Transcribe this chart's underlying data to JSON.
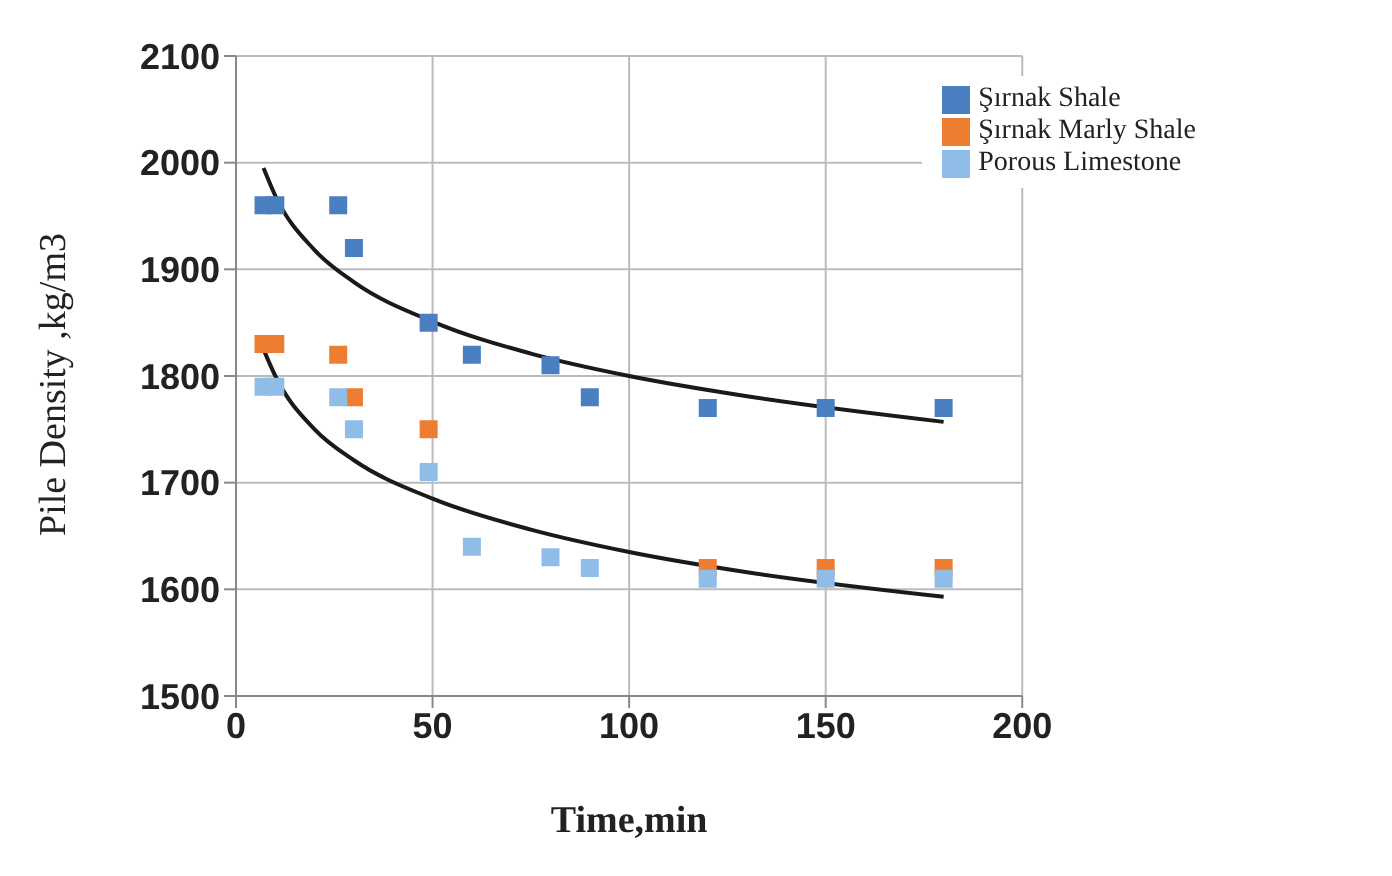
{
  "chart_data": {
    "type": "scatter",
    "xlabel": "Time,min",
    "ylabel": "Pile Density ,kg/m3",
    "x": [
      7,
      10,
      26,
      30,
      49,
      60,
      80,
      90,
      120,
      150,
      180
    ],
    "series": [
      {
        "name": "Şırnak Shale",
        "color": "#4a7fc1",
        "values": [
          1960,
          1960,
          1960,
          1920,
          1850,
          1820,
          1810,
          1780,
          1770,
          1770,
          1770
        ],
        "marker": "square"
      },
      {
        "name": "Şırnak Marly Shale",
        "color": "#ed7d31",
        "values": [
          1830,
          1830,
          1820,
          1780,
          1750,
          null,
          null,
          null,
          1620,
          1620,
          1620
        ],
        "marker": "square"
      },
      {
        "name": "Porous Limestone",
        "color": "#8fbde8",
        "values": [
          1790,
          1790,
          1780,
          1750,
          1710,
          1640,
          1630,
          1620,
          1610,
          1610,
          1610
        ],
        "marker": "square"
      },
      {
        "type": "line",
        "color": "#1a1a1a",
        "x": [
          7,
          10,
          20,
          30,
          50,
          75,
          100,
          130,
          180
        ],
        "values": [
          1995,
          1969,
          1918,
          1888,
          1851,
          1821,
          1800,
          1781,
          1757
        ]
      },
      {
        "type": "line",
        "color": "#1a1a1a",
        "x": [
          7,
          10,
          20,
          30,
          50,
          75,
          100,
          130,
          180
        ],
        "values": [
          1825,
          1800,
          1750,
          1721,
          1685,
          1656,
          1635,
          1616,
          1593
        ]
      }
    ],
    "xlim": [
      0,
      200
    ],
    "xticks": [
      0,
      50,
      100,
      150,
      200
    ],
    "ylim": [
      1500,
      2100
    ],
    "yticks": [
      1500,
      1600,
      1700,
      1800,
      1900,
      2000,
      2100
    ],
    "grid": true,
    "legend": "top right"
  }
}
